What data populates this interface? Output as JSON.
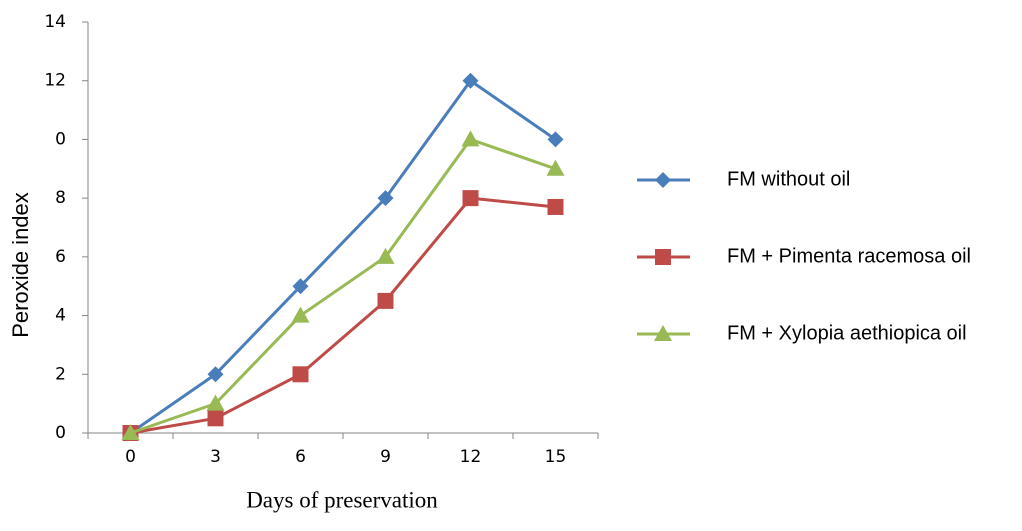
{
  "chart_data": {
    "type": "line",
    "x_label": "Days of preservation",
    "y_label": "Peroxide index",
    "categories": [
      "0",
      "3",
      "6",
      "9",
      "12",
      "15"
    ],
    "series": [
      {
        "name": "FM without oil",
        "color": "#4a7ebb",
        "marker": "diamond",
        "values": [
          0,
          2,
          5,
          8,
          12,
          10
        ]
      },
      {
        "name": "FM + Pimenta racemosa oil",
        "color": "#be4b48",
        "marker": "square",
        "values": [
          0,
          0.5,
          2,
          4.5,
          8,
          7.7
        ]
      },
      {
        "name": "FM + Xylopia aethiopica oil",
        "color": "#98b954",
        "marker": "triangle",
        "values": [
          0,
          1,
          4,
          6,
          10,
          9
        ]
      }
    ],
    "ylim": [
      0,
      14
    ],
    "yticks": [
      0,
      2,
      4,
      6,
      8,
      {
        "value": 10,
        "label": "0"
      },
      12,
      14
    ],
    "grid": false,
    "legend": "right"
  }
}
